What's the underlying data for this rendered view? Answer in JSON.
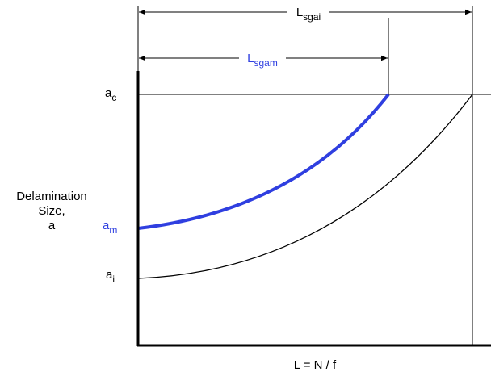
{
  "labels": {
    "l_sgai": {
      "main": "L",
      "sub": "sgai"
    },
    "l_sgam": {
      "main": "L",
      "sub": "sgam"
    },
    "a_c": {
      "main": "a",
      "sub": "c"
    },
    "a_m": {
      "main": "a",
      "sub": "m"
    },
    "a_i": {
      "main": "a",
      "sub": "i"
    }
  },
  "y_axis_label": [
    "Delamination",
    "Size,",
    "a"
  ],
  "x_axis_label": "L = N / f"
}
